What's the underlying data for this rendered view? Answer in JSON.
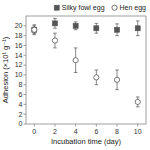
{
  "chart_data": {
    "type": "scatter",
    "xlabel": "Incubation time (day)",
    "ylabel": "Adhesion (×10¹ g⁻¹)",
    "x": [
      0,
      2,
      4,
      6,
      8,
      10
    ],
    "series": [
      {
        "name": "Silky fowl egg",
        "color": "#555555",
        "marker": "square",
        "values": [
          19.2,
          20.5,
          20.0,
          19.5,
          19.2,
          19.5
        ],
        "errors": [
          0.8,
          1.0,
          0.8,
          1.0,
          1.2,
          1.5
        ]
      },
      {
        "name": "Hen egg",
        "color": "#555555",
        "marker": "circle-open",
        "values": [
          19.2,
          17.0,
          13.0,
          9.5,
          9.0,
          4.5
        ],
        "errors": [
          1.0,
          1.5,
          2.5,
          1.5,
          2.0,
          1.0
        ]
      }
    ],
    "xlim": [
      -0.8,
      10.8
    ],
    "ylim": [
      0,
      22
    ],
    "xticks": [
      0,
      2,
      4,
      6,
      8,
      10
    ],
    "yticks": [
      0,
      2,
      4,
      6,
      8,
      10,
      12,
      14,
      16,
      18,
      20
    ],
    "legend": "upper right",
    "grid": false
  }
}
